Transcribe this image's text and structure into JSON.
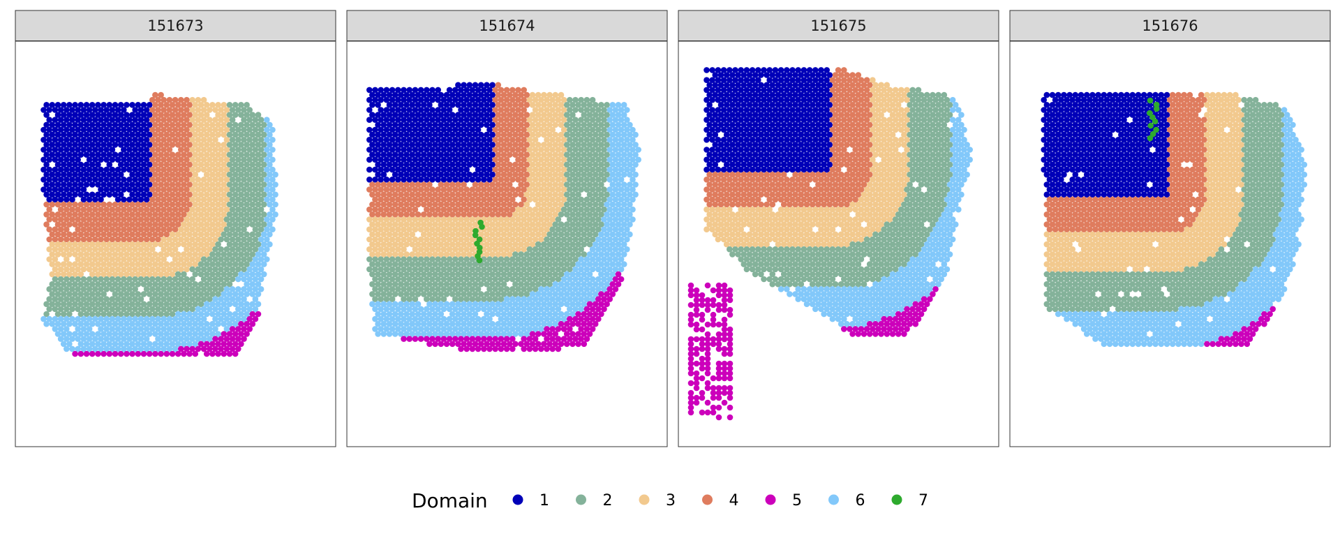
{
  "chart_data": {
    "type": "scatter",
    "description_free": true,
    "panels": [
      {
        "sample": "151673"
      },
      {
        "sample": "151674"
      },
      {
        "sample": "151675"
      },
      {
        "sample": "151676"
      }
    ],
    "legend": {
      "title": "Domain",
      "position": "bottom",
      "items": [
        {
          "label": "1",
          "color": "#0000B8"
        },
        {
          "label": "2",
          "color": "#84B29A"
        },
        {
          "label": "3",
          "color": "#F2C98E"
        },
        {
          "label": "4",
          "color": "#DF7C5E"
        },
        {
          "label": "5",
          "color": "#CC00BB"
        },
        {
          "label": "6",
          "color": "#82C8FA"
        },
        {
          "label": "7",
          "color": "#2EAA2E"
        }
      ]
    },
    "grid": false,
    "axes_visible": false
  }
}
